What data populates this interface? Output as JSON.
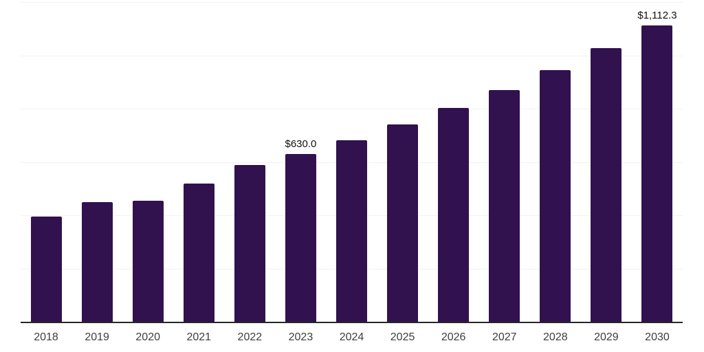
{
  "chart_data": {
    "type": "bar",
    "title": "",
    "xlabel": "",
    "ylabel": "",
    "categories": [
      "2018",
      "2019",
      "2020",
      "2021",
      "2022",
      "2023",
      "2024",
      "2025",
      "2026",
      "2027",
      "2028",
      "2029",
      "2030"
    ],
    "values": [
      395,
      448,
      454,
      518,
      589,
      630.0,
      682,
      740,
      802,
      871,
      945,
      1027,
      1112.3
    ],
    "data_labels": {
      "2023": "$630.0",
      "2030": "$1,112.3"
    },
    "ylim": [
      0,
      1200
    ],
    "y_gridline_step": 200,
    "y_axis_labels_visible": false,
    "grid": "horizontal",
    "legend_position": "none",
    "colors": {
      "bar": "#31114E",
      "axis_line": "#262626",
      "gridline": "#f2f2f2",
      "tick_label": "#3d3d3d",
      "data_label": "#111111",
      "background": "#ffffff"
    }
  }
}
